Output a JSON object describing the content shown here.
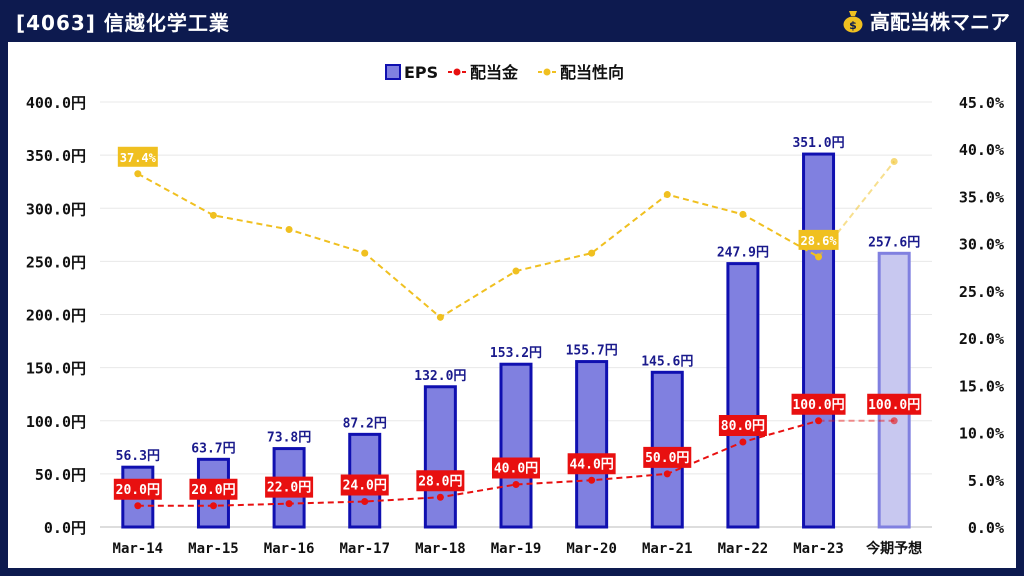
{
  "header": {
    "title": "[4063] 信越化学工業",
    "brand": "高配当株マニア",
    "brand_icon": "money-bag-icon"
  },
  "colors": {
    "header_bg": "#0d1a4f",
    "eps_fill": "#8080e0",
    "eps_stroke": "#1010b0",
    "forecast_fill": "#c8c8f0",
    "forecast_stroke": "#8080e0",
    "dividend": "#e81010",
    "payout": "#f0c020"
  },
  "chart_data": {
    "type": "bar",
    "categories": [
      "Mar-14",
      "Mar-15",
      "Mar-16",
      "Mar-17",
      "Mar-18",
      "Mar-19",
      "Mar-20",
      "Mar-21",
      "Mar-22",
      "Mar-23",
      "今期予想"
    ],
    "legend": [
      "EPS",
      "配当金",
      "配当性向"
    ],
    "legend_position": "top-center",
    "y_left": {
      "ticks": [
        "0.0円",
        "50.0円",
        "100.0円",
        "150.0円",
        "200.0円",
        "250.0円",
        "300.0円",
        "350.0円",
        "400.0円"
      ],
      "lim": [
        0,
        400
      ]
    },
    "y_right": {
      "ticks": [
        "0.0%",
        "5.0%",
        "10.0%",
        "15.0%",
        "20.0%",
        "25.0%",
        "30.0%",
        "35.0%",
        "40.0%",
        "45.0%"
      ],
      "lim": [
        0,
        45
      ]
    },
    "series": [
      {
        "name": "EPS",
        "kind": "bar",
        "axis": "left",
        "values": [
          56.3,
          63.7,
          73.8,
          87.2,
          132.0,
          153.2,
          155.7,
          145.6,
          247.9,
          351.0,
          257.6
        ],
        "labels": [
          "56.3円",
          "63.7円",
          "73.8円",
          "87.2円",
          "132.0円",
          "153.2円",
          "155.7円",
          "145.6円",
          "247.9円",
          "351.0円",
          "257.6円"
        ]
      },
      {
        "name": "配当金",
        "kind": "line",
        "axis": "left",
        "values": [
          20.0,
          20.0,
          22.0,
          24.0,
          28.0,
          40.0,
          44.0,
          50.0,
          80.0,
          100.0,
          100.0
        ],
        "labels": [
          "20.0円",
          "20.0円",
          "22.0円",
          "24.0円",
          "28.0円",
          "40.0円",
          "44.0円",
          "50.0円",
          "80.0円",
          "100.0円",
          "100.0円"
        ]
      },
      {
        "name": "配当性向",
        "kind": "line",
        "axis": "right",
        "values": [
          37.4,
          33.0,
          31.5,
          29.0,
          22.2,
          27.1,
          29.0,
          35.2,
          33.1,
          28.6,
          38.7
        ],
        "labels": [
          "37.4%",
          null,
          null,
          null,
          null,
          null,
          null,
          null,
          null,
          "28.6%",
          null
        ]
      }
    ],
    "grid": true
  }
}
